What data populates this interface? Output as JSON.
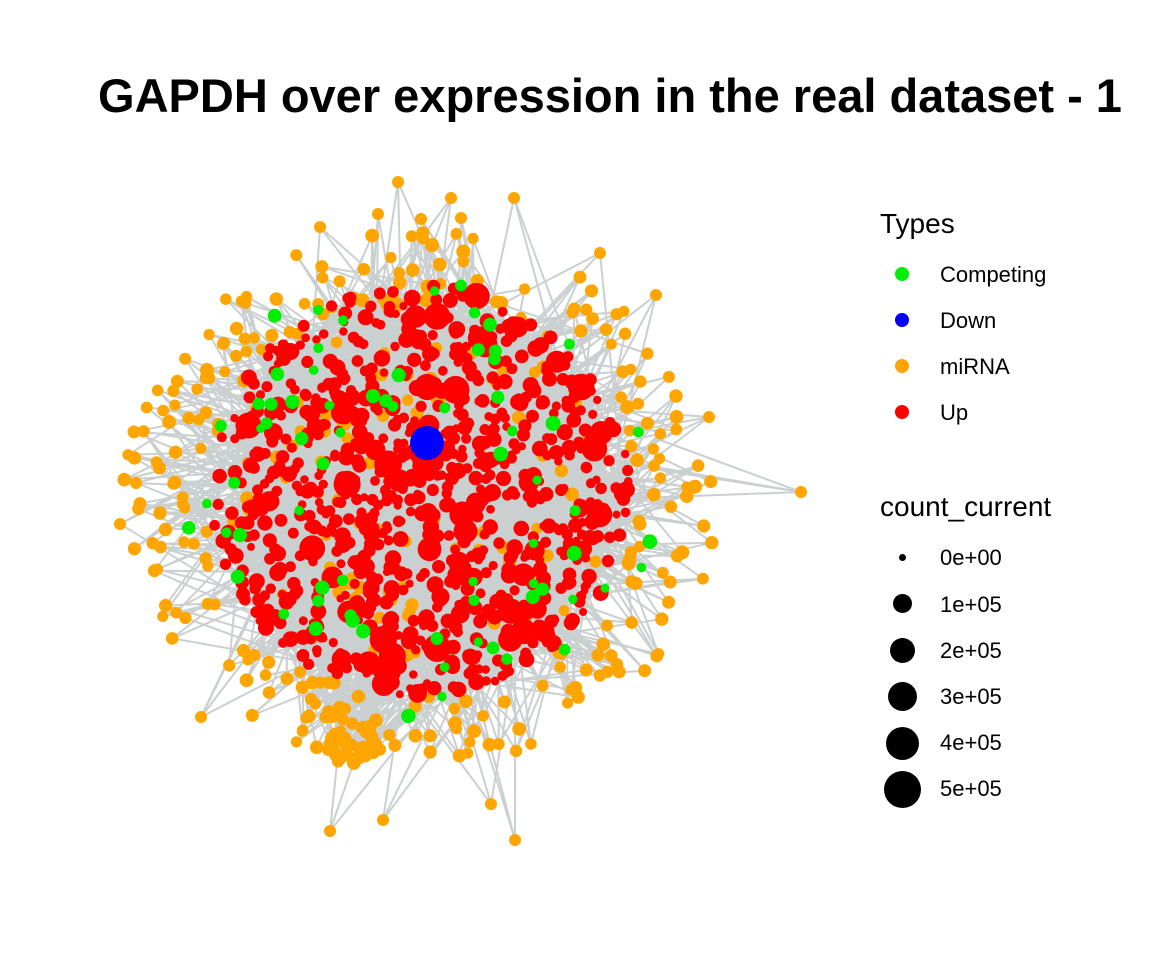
{
  "title": "GAPDH over expression in the real dataset - 1",
  "legend_types": {
    "title": "Types",
    "items": [
      {
        "label": "Competing",
        "color": "#00ee00"
      },
      {
        "label": "Down",
        "color": "#0000ff"
      },
      {
        "label": "miRNA",
        "color": "#ffa500"
      },
      {
        "label": "Up",
        "color": "#ff0000"
      }
    ]
  },
  "legend_size": {
    "title": "count_current",
    "items": [
      {
        "label": "0e+00",
        "value": 0
      },
      {
        "label": "1e+05",
        "value": 100000
      },
      {
        "label": "2e+05",
        "value": 200000
      },
      {
        "label": "3e+05",
        "value": 300000
      },
      {
        "label": "4e+05",
        "value": 400000
      },
      {
        "label": "5e+05",
        "value": 500000
      }
    ]
  },
  "edge_color": "#8a9597"
}
